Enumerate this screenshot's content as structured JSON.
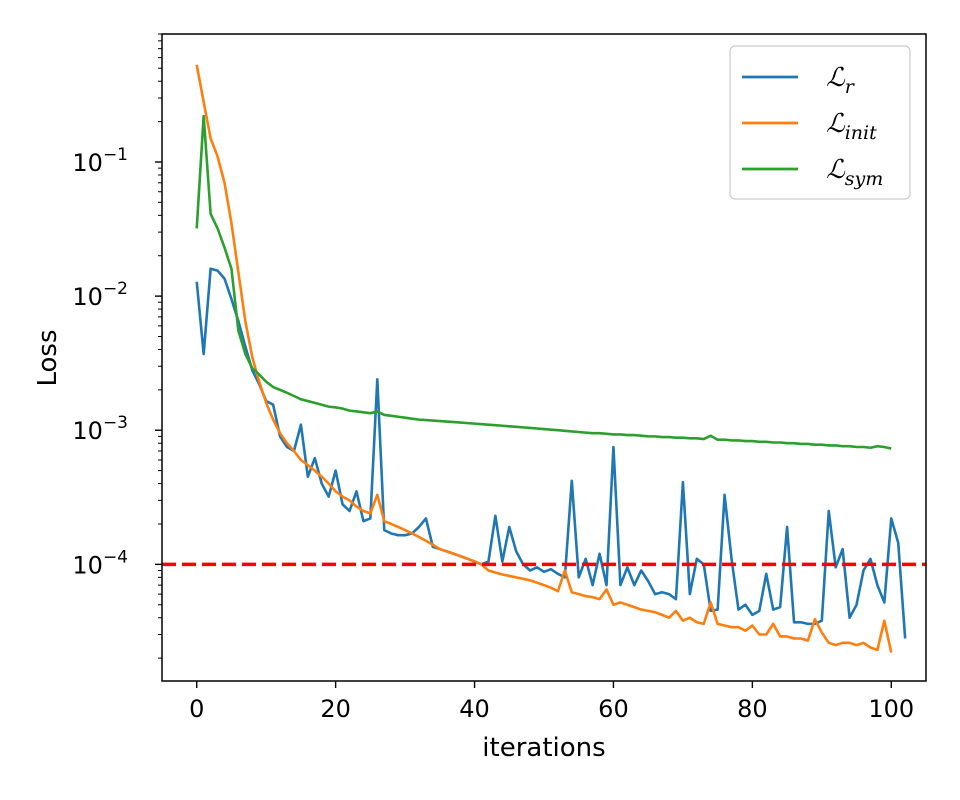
{
  "chart_data": {
    "type": "line",
    "title": "",
    "xlabel": "iterations",
    "ylabel": "Loss",
    "yscale": "log",
    "xlim": [
      -5,
      105
    ],
    "ylim": [
      1.35e-05,
      0.9
    ],
    "x_ticks": [
      0,
      20,
      40,
      60,
      80,
      100
    ],
    "y_ticks": [
      {
        "value": 0.1,
        "base": "10",
        "exp": "−1"
      },
      {
        "value": 0.01,
        "base": "10",
        "exp": "−2"
      },
      {
        "value": 0.001,
        "base": "10",
        "exp": "−3"
      },
      {
        "value": 0.0001,
        "base": "10",
        "exp": "−4"
      }
    ],
    "legend_position": "top-right",
    "threshold": {
      "value": 0.0001,
      "color": "#ff0000",
      "style": "dashed"
    },
    "series": [
      {
        "name": "ℒr",
        "label_main": "ℒ",
        "label_sub": "r",
        "color": "#1f77b4",
        "values": [
          0.0128,
          0.0037,
          0.016,
          0.0155,
          0.0135,
          0.0095,
          0.0065,
          0.0042,
          0.0028,
          0.0022,
          0.00165,
          0.00155,
          0.0009,
          0.00075,
          0.0007,
          0.0011,
          0.00045,
          0.00062,
          0.0004,
          0.00032,
          0.0005,
          0.00028,
          0.00025,
          0.00035,
          0.00021,
          0.00022,
          0.0024,
          0.00018,
          0.00017,
          0.000165,
          0.000165,
          0.00017,
          0.00019,
          0.00022,
          0.000135,
          0.00013,
          0.000125,
          0.00012,
          0.000115,
          0.00011,
          0.000105,
          0.0001,
          0.000105,
          0.00023,
          0.000105,
          0.00019,
          0.000125,
          0.0001,
          9e-05,
          9.5e-05,
          8.8e-05,
          9.2e-05,
          8.5e-05,
          8e-05,
          0.00042,
          8e-05,
          0.00011,
          7e-05,
          0.00012,
          7e-05,
          0.00075,
          7e-05,
          9.5e-05,
          7e-05,
          9e-05,
          7.5e-05,
          6e-05,
          6.2e-05,
          6e-05,
          5.5e-05,
          0.00041,
          6e-05,
          0.00011,
          0.0001,
          4.5e-05,
          4.6e-05,
          0.00033,
          0.00011,
          4.6e-05,
          5e-05,
          4.2e-05,
          4.5e-05,
          8.5e-05,
          4.6e-05,
          4.8e-05,
          0.00019,
          3.7e-05,
          3.7e-05,
          3.6e-05,
          3.6e-05,
          3.8e-05,
          0.00025,
          9.5e-05,
          0.00013,
          4e-05,
          5e-05,
          9e-05,
          0.00011,
          7e-05,
          5.2e-05,
          0.00022,
          0.000145,
          2.8e-05
        ]
      },
      {
        "name": "ℒinit",
        "label_main": "ℒ",
        "label_sub": "init",
        "color": "#ff7f0e",
        "values": [
          0.53,
          0.28,
          0.15,
          0.11,
          0.07,
          0.035,
          0.015,
          0.0065,
          0.0035,
          0.0023,
          0.0016,
          0.0012,
          0.00095,
          0.0008,
          0.0007,
          0.0006,
          0.00055,
          0.0005,
          0.00045,
          0.0004,
          0.00035,
          0.00032,
          0.0003,
          0.00027,
          0.00025,
          0.00024,
          0.00033,
          0.00021,
          0.0002,
          0.00019,
          0.00018,
          0.00017,
          0.00016,
          0.00015,
          0.00014,
          0.00013,
          0.000125,
          0.00012,
          0.000115,
          0.00011,
          0.000105,
          0.0001,
          9e-05,
          8.7e-05,
          8.4e-05,
          8.2e-05,
          8e-05,
          7.8e-05,
          7.6e-05,
          7.3e-05,
          7e-05,
          6.7e-05,
          6.3e-05,
          9e-05,
          6.2e-05,
          6e-05,
          5.8e-05,
          5.7e-05,
          5.5e-05,
          6.5e-05,
          5e-05,
          5.2e-05,
          5e-05,
          4.8e-05,
          4.6e-05,
          4.5e-05,
          4.4e-05,
          4.2e-05,
          4e-05,
          4.5e-05,
          3.8e-05,
          4e-05,
          3.7e-05,
          3.6e-05,
          5.2e-05,
          3.6e-05,
          3.5e-05,
          3.4e-05,
          3.4e-05,
          3.2e-05,
          3.5e-05,
          3e-05,
          3e-05,
          3.6e-05,
          2.9e-05,
          2.9e-05,
          2.8e-05,
          2.8e-05,
          2.7e-05,
          3.9e-05,
          3.1e-05,
          2.6e-05,
          2.5e-05,
          2.6e-05,
          2.6e-05,
          2.5e-05,
          2.6e-05,
          2.4e-05,
          2.3e-05,
          3.8e-05,
          2.2e-05
        ]
      },
      {
        "name": "ℒsym",
        "label_main": "ℒ",
        "label_sub": "sym",
        "color": "#2ca02c",
        "values": [
          0.032,
          0.22,
          0.041,
          0.032,
          0.023,
          0.016,
          0.0055,
          0.0037,
          0.0029,
          0.0026,
          0.0023,
          0.0021,
          0.002,
          0.0019,
          0.0018,
          0.0017,
          0.00165,
          0.0016,
          0.00155,
          0.0015,
          0.00148,
          0.00145,
          0.0014,
          0.00138,
          0.00136,
          0.00134,
          0.00138,
          0.0013,
          0.00128,
          0.00126,
          0.00124,
          0.00122,
          0.0012,
          0.00119,
          0.00118,
          0.00117,
          0.00116,
          0.00115,
          0.00114,
          0.00113,
          0.00112,
          0.00111,
          0.0011,
          0.00109,
          0.00108,
          0.00107,
          0.00106,
          0.00105,
          0.00104,
          0.00103,
          0.00102,
          0.00101,
          0.001,
          0.00099,
          0.00098,
          0.00097,
          0.00096,
          0.00095,
          0.00095,
          0.00094,
          0.00093,
          0.00093,
          0.00092,
          0.00092,
          0.00091,
          0.0009,
          0.0009,
          0.00089,
          0.00089,
          0.00088,
          0.00088,
          0.00087,
          0.00087,
          0.00086,
          0.00091,
          0.00085,
          0.00085,
          0.00084,
          0.00084,
          0.00083,
          0.00083,
          0.00082,
          0.00082,
          0.00081,
          0.00081,
          0.0008,
          0.0008,
          0.00079,
          0.00079,
          0.00078,
          0.00078,
          0.00077,
          0.00077,
          0.00076,
          0.00076,
          0.00075,
          0.00075,
          0.00074,
          0.00076,
          0.00075,
          0.00073
        ]
      }
    ]
  }
}
